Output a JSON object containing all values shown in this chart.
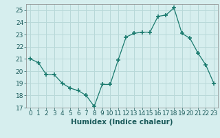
{
  "x": [
    0,
    1,
    2,
    3,
    4,
    5,
    6,
    7,
    8,
    9,
    10,
    11,
    12,
    13,
    14,
    15,
    16,
    17,
    18,
    19,
    20,
    21,
    22,
    23
  ],
  "y": [
    21.0,
    20.7,
    19.7,
    19.7,
    19.0,
    18.6,
    18.4,
    18.0,
    17.1,
    18.9,
    18.9,
    20.9,
    22.8,
    23.1,
    23.2,
    23.2,
    24.5,
    24.6,
    25.2,
    23.1,
    22.7,
    21.5,
    20.5,
    19.0
  ],
  "line_color": "#1a7a6e",
  "marker": "+",
  "marker_size": 4,
  "bg_color": "#d6eeee",
  "grid_color": "#b8d8d8",
  "xlabel": "Humidex (Indice chaleur)",
  "ylim": [
    17,
    25.5
  ],
  "yticks": [
    17,
    18,
    19,
    20,
    21,
    22,
    23,
    24,
    25
  ],
  "xlim": [
    -0.5,
    23.5
  ],
  "xlabel_fontsize": 7.5,
  "tick_fontsize": 6.5
}
